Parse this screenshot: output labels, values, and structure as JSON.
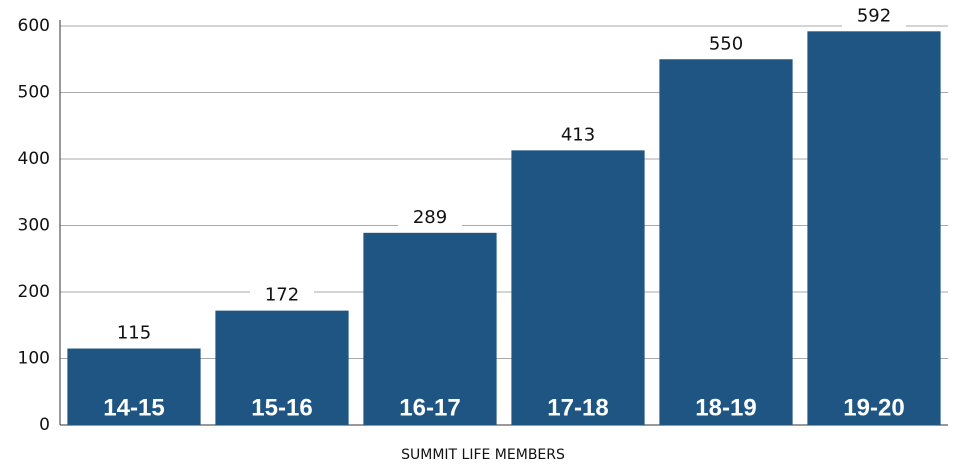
{
  "chart_data": {
    "type": "bar",
    "x_label": "SUMMIT LIFE MEMBERS",
    "categories": [
      "14-15",
      "15-16",
      "16-17",
      "17-18",
      "18-19",
      "19-20"
    ],
    "values": [
      115,
      172,
      289,
      413,
      550,
      592
    ],
    "color": "#1f5582",
    "ylim": [
      0,
      600
    ],
    "yticks": [
      0,
      100,
      200,
      300,
      400,
      500,
      600
    ],
    "grid": true
  }
}
